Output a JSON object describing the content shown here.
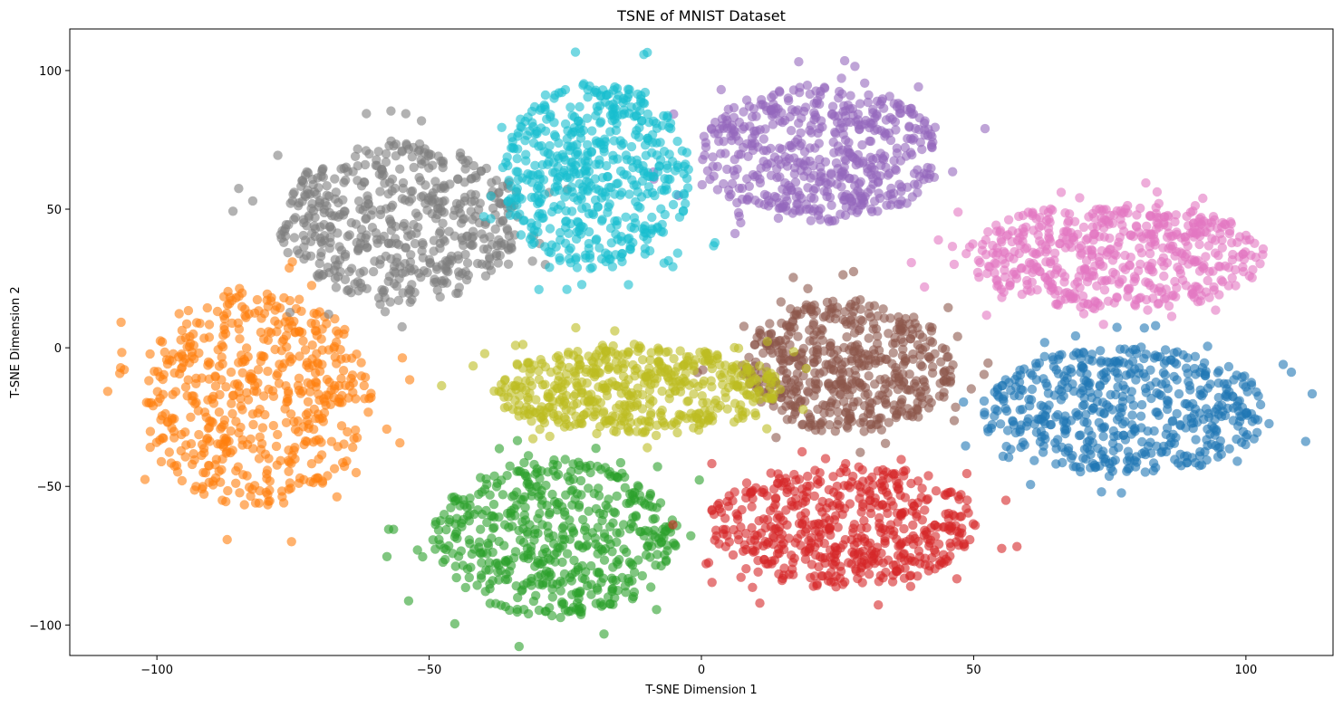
{
  "chart_data": {
    "type": "scatter",
    "title": "TSNE of MNIST Dataset",
    "xlabel": "T-SNE Dimension 1",
    "ylabel": "T-SNE Dimension 2",
    "xlim": [
      -116,
      116
    ],
    "ylim": [
      -111,
      115
    ],
    "xticks": [
      -100,
      -50,
      0,
      50,
      100
    ],
    "xtick_labels": [
      "−100",
      "−50",
      "0",
      "50",
      "100"
    ],
    "yticks": [
      -100,
      -50,
      0,
      50,
      100
    ],
    "ytick_labels": [
      "−100",
      "−50",
      "0",
      "50",
      "100"
    ],
    "grid": false,
    "legend": "none",
    "marker_alpha": 0.6,
    "series": [
      {
        "color": "#1f77b4",
        "cluster": {
          "cx": 78,
          "cy": -23,
          "rx": 27,
          "ry": 24
        },
        "count": 520
      },
      {
        "color": "#ff7f0e",
        "cluster": {
          "cx": -82,
          "cy": -18,
          "rx": 22,
          "ry": 40
        },
        "count": 520
      },
      {
        "color": "#2ca02c",
        "cluster": {
          "cx": -27,
          "cy": -69,
          "rx": 23,
          "ry": 29
        },
        "count": 520
      },
      {
        "color": "#d62728",
        "cluster": {
          "cx": 26,
          "cy": -64,
          "rx": 25,
          "ry": 23
        },
        "count": 520
      },
      {
        "color": "#9467bd",
        "cluster": {
          "cx": 22,
          "cy": 70,
          "rx": 23,
          "ry": 25
        },
        "count": 520
      },
      {
        "color": "#8c564b",
        "cluster": {
          "cx": 27,
          "cy": -7,
          "rx": 20,
          "ry": 25
        },
        "count": 520
      },
      {
        "color": "#e377c2",
        "cluster": {
          "cx": 76,
          "cy": 33,
          "rx": 28,
          "ry": 20
        },
        "count": 520
      },
      {
        "color": "#7f7f7f",
        "cluster": {
          "cx": -55,
          "cy": 45,
          "rx": 23,
          "ry": 30
        },
        "count": 520
      },
      {
        "color": "#bcbd22",
        "cluster": {
          "cx": -12,
          "cy": -15,
          "rx": 27,
          "ry": 17
        },
        "count": 520
      },
      {
        "color": "#17becf",
        "cluster": {
          "cx": -19,
          "cy": 62,
          "rx": 18,
          "ry": 35
        },
        "count": 520
      }
    ]
  }
}
